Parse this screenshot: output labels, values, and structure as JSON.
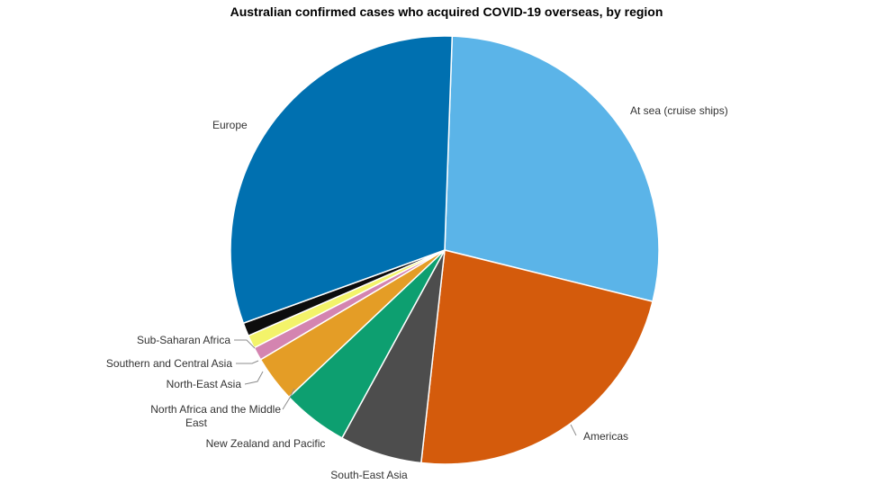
{
  "chart_data": {
    "type": "pie",
    "title": "Australian confirmed cases who acquired COVID-19 overseas, by region",
    "slices": [
      {
        "label": "At sea (cruise ships)",
        "value": 28.3,
        "color": "#5bb4e8"
      },
      {
        "label": "Americas",
        "value": 22.9,
        "color": "#d45b0c"
      },
      {
        "label": "South-East Asia",
        "value": 6.2,
        "color": "#4d4d4d"
      },
      {
        "label": "New Zealand and Pacific",
        "value": 5.0,
        "color": "#0d9f70"
      },
      {
        "label": "North Africa and the Middle East",
        "value": 3.5,
        "color": "#e49d26"
      },
      {
        "label": "North-East Asia",
        "value": 1.0,
        "color": "#d484b0"
      },
      {
        "label": "Southern and Central Asia",
        "value": 1.0,
        "color": "#f3f36a"
      },
      {
        "label": "Sub-Saharan Africa",
        "value": 1.0,
        "color": "#0d0d0d"
      },
      {
        "label": "Europe",
        "value": 31.1,
        "color": "#0070b0"
      }
    ],
    "start_angle_deg": 2,
    "direction": "clockwise"
  }
}
